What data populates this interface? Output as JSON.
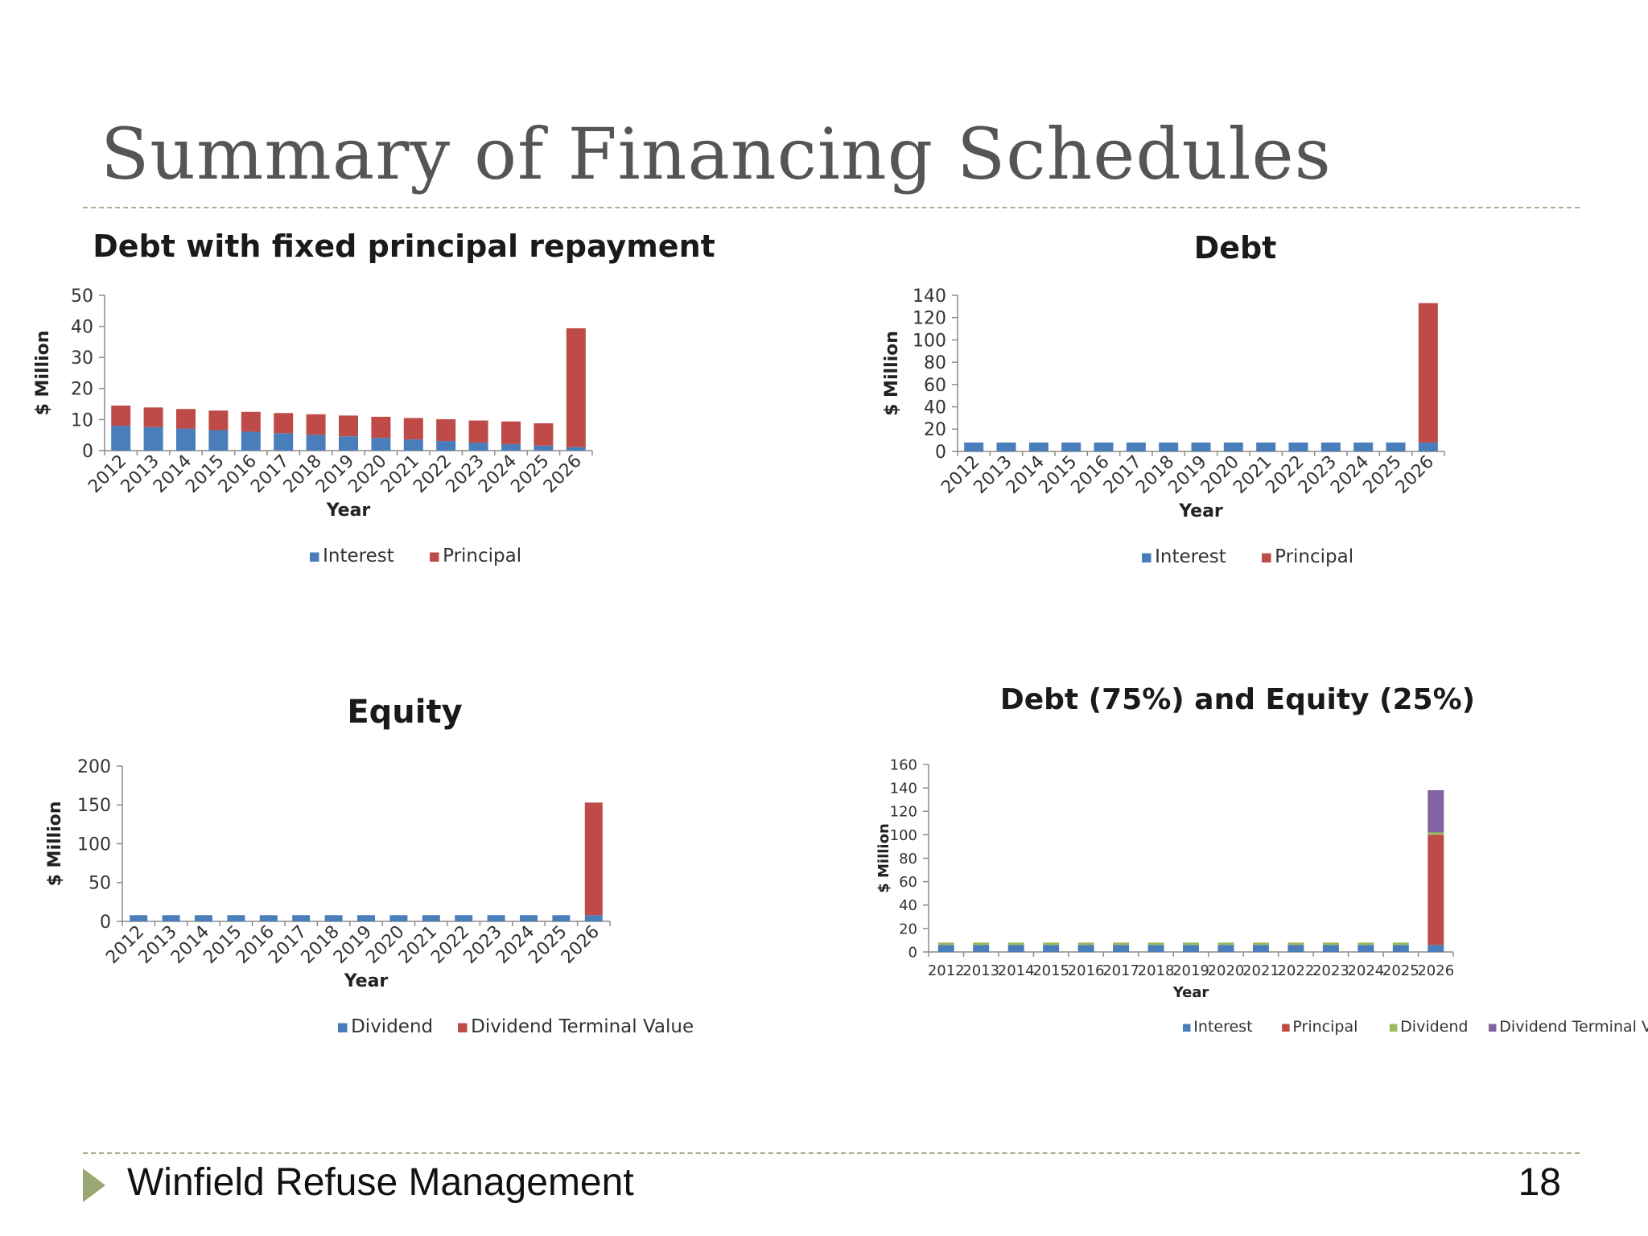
{
  "slide": {
    "title": "Summary of Financing Schedules",
    "footer_text": "Winfield Refuse Management",
    "page_number": "18"
  },
  "chart_data": [
    {
      "type": "bar",
      "stacked": true,
      "title": "Debt with fixed principal repayment",
      "xlabel": "Year",
      "ylabel": "$ Million",
      "ylim": [
        0,
        50
      ],
      "yticks": [
        0,
        10,
        20,
        30,
        40,
        50
      ],
      "legend_position": "bottom",
      "categories": [
        "2012",
        "2013",
        "2014",
        "2015",
        "2016",
        "2017",
        "2018",
        "2019",
        "2020",
        "2021",
        "2022",
        "2023",
        "2024",
        "2025",
        "2026"
      ],
      "series": [
        {
          "name": "Interest",
          "color": "#4a7ebb",
          "values": [
            8,
            7.6,
            7.1,
            6.6,
            6.1,
            5.6,
            5.1,
            4.6,
            4.1,
            3.6,
            3.1,
            2.6,
            2.1,
            1.6,
            1.1
          ]
        },
        {
          "name": "Principal",
          "color": "#be4b48",
          "values": [
            6.5,
            6.3,
            6.3,
            6.3,
            6.4,
            6.5,
            6.6,
            6.7,
            6.8,
            6.9,
            7.0,
            7.1,
            7.3,
            7.2,
            38.3
          ]
        }
      ]
    },
    {
      "type": "bar",
      "stacked": true,
      "title": "Debt",
      "xlabel": "Year",
      "ylabel": "$ Million",
      "ylim": [
        0,
        140
      ],
      "yticks": [
        0,
        20,
        40,
        60,
        80,
        100,
        120,
        140
      ],
      "legend_position": "bottom",
      "categories": [
        "2012",
        "2013",
        "2014",
        "2015",
        "2016",
        "2017",
        "2018",
        "2019",
        "2020",
        "2021",
        "2022",
        "2023",
        "2024",
        "2025",
        "2026"
      ],
      "series": [
        {
          "name": "Interest",
          "color": "#4a7ebb",
          "values": [
            8,
            8,
            8,
            8,
            8,
            8,
            8,
            8,
            8,
            8,
            8,
            8,
            8,
            8,
            8
          ]
        },
        {
          "name": "Principal",
          "color": "#be4b48",
          "values": [
            0,
            0,
            0,
            0,
            0,
            0,
            0,
            0,
            0,
            0,
            0,
            0,
            0,
            0,
            125
          ]
        }
      ]
    },
    {
      "type": "bar",
      "stacked": true,
      "title": "Equity",
      "xlabel": "Year",
      "ylabel": "$ Million",
      "ylim": [
        0,
        200
      ],
      "yticks": [
        0,
        50,
        100,
        150,
        200
      ],
      "legend_position": "bottom",
      "categories": [
        "2012",
        "2013",
        "2014",
        "2015",
        "2016",
        "2017",
        "2018",
        "2019",
        "2020",
        "2021",
        "2022",
        "2023",
        "2024",
        "2025",
        "2026"
      ],
      "series": [
        {
          "name": "Dividend",
          "color": "#4a7ebb",
          "values": [
            8,
            8,
            8,
            8,
            8,
            8,
            8,
            8,
            8,
            8,
            8,
            8,
            8,
            8,
            8
          ]
        },
        {
          "name": "Dividend Terminal Value",
          "color": "#be4b48",
          "values": [
            0,
            0,
            0,
            0,
            0,
            0,
            0,
            0,
            0,
            0,
            0,
            0,
            0,
            0,
            145
          ]
        }
      ]
    },
    {
      "type": "bar",
      "stacked": true,
      "title": "Debt (75%) and Equity (25%)",
      "xlabel": "Year",
      "ylabel": "$ Million",
      "ylim": [
        0,
        160
      ],
      "yticks": [
        0,
        20,
        40,
        60,
        80,
        100,
        120,
        140,
        160
      ],
      "legend_position": "bottom",
      "categories": [
        "2012",
        "2013",
        "2014",
        "2015",
        "2016",
        "2017",
        "2018",
        "2019",
        "2020",
        "2021",
        "2022",
        "2023",
        "2024",
        "2025",
        "2026"
      ],
      "series": [
        {
          "name": "Interest",
          "color": "#4a7ebb",
          "values": [
            6,
            6,
            6,
            6,
            6,
            6,
            6,
            6,
            6,
            6,
            6,
            6,
            6,
            6,
            6
          ]
        },
        {
          "name": "Principal",
          "color": "#be4b48",
          "values": [
            0,
            0,
            0,
            0,
            0,
            0,
            0,
            0,
            0,
            0,
            0,
            0,
            0,
            0,
            94
          ]
        },
        {
          "name": "Dividend",
          "color": "#9bbb59",
          "values": [
            2,
            2,
            2,
            2,
            2,
            2,
            2,
            2,
            2,
            2,
            2,
            2,
            2,
            2,
            2
          ]
        },
        {
          "name": "Dividend Terminal Value",
          "color": "#8064a2",
          "values": [
            0,
            0,
            0,
            0,
            0,
            0,
            0,
            0,
            0,
            0,
            0,
            0,
            0,
            0,
            36
          ]
        }
      ]
    }
  ]
}
